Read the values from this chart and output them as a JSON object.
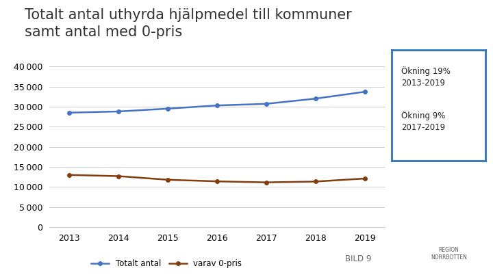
{
  "title": "Totalt antal uthyrda hjälpmedel till kommuner\nsamt antal med 0-pris",
  "years": [
    2013,
    2014,
    2015,
    2016,
    2017,
    2018,
    2019
  ],
  "totalt_antal": [
    28500,
    28800,
    29500,
    30300,
    30700,
    32000,
    33700
  ],
  "varav_0pris": [
    13000,
    12700,
    11800,
    11400,
    11150,
    11350,
    12100
  ],
  "line1_color": "#4472C4",
  "line2_color": "#843C0C",
  "ylim": [
    0,
    40000
  ],
  "yticks": [
    0,
    5000,
    10000,
    15000,
    20000,
    25000,
    30000,
    35000,
    40000
  ],
  "annotation_box_text": "Ökning 19%\n2013-2019\n\nÖkning 9%\n2017-2019",
  "annotation_box_color": "#2E75B6",
  "legend_label1": "Totalt antal",
  "legend_label2": "varav 0-pris",
  "bild_text": "BILD 9",
  "background_color": "#FFFFFF",
  "grid_color": "#CCCCCC",
  "title_fontsize": 15,
  "axis_fontsize": 9,
  "legend_fontsize": 8.5
}
